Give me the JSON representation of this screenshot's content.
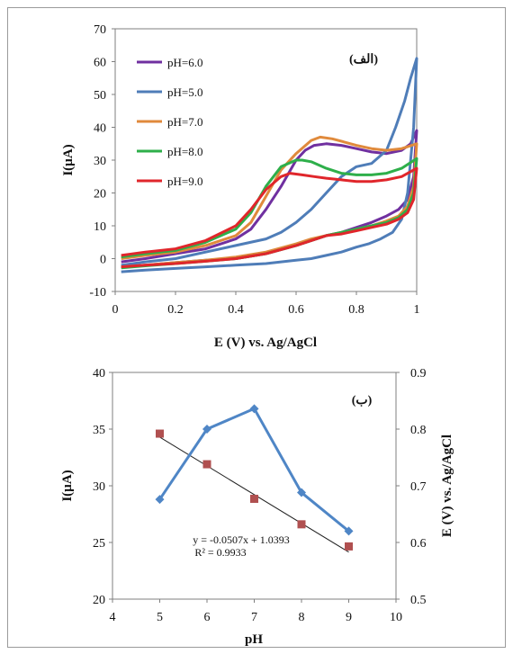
{
  "chart_data": [
    {
      "type": "line",
      "panel_label": "(الف)",
      "xlabel": "E (V) vs. Ag/AgCl",
      "ylabel": "I(µA)",
      "xlim": [
        0,
        1
      ],
      "ylim": [
        -10,
        70
      ],
      "xticks": [
        "0",
        "0.2",
        "0.4",
        "0.6",
        "0.8",
        "1"
      ],
      "yticks": [
        "-10",
        "0",
        "10",
        "20",
        "30",
        "40",
        "50",
        "60",
        "70"
      ],
      "legend_position": "top-left",
      "grid": false,
      "series": [
        {
          "name": "pH=6.0",
          "color": "#7030A0",
          "x": [
            0.02,
            0.1,
            0.2,
            0.3,
            0.4,
            0.45,
            0.5,
            0.55,
            0.6,
            0.63,
            0.66,
            0.7,
            0.75,
            0.8,
            0.85,
            0.9,
            0.95,
            0.98,
            1.0,
            0.99,
            0.97,
            0.94,
            0.9,
            0.85,
            0.8,
            0.75,
            0.7,
            0.65,
            0.6,
            0.5,
            0.4,
            0.3,
            0.2,
            0.1,
            0.02
          ],
          "y": [
            -1,
            0,
            1.5,
            3,
            6,
            9,
            15,
            22,
            30,
            33,
            34.5,
            35,
            34.5,
            33.5,
            32.5,
            32,
            33,
            35,
            39,
            25,
            18,
            15,
            13,
            11,
            9.5,
            8,
            7,
            5.5,
            4,
            1.5,
            0,
            -0.5,
            -1.2,
            -2,
            -2.5
          ]
        },
        {
          "name": "pH=5.0",
          "color": "#4F7DB8",
          "x": [
            0.02,
            0.1,
            0.2,
            0.3,
            0.4,
            0.5,
            0.55,
            0.6,
            0.65,
            0.7,
            0.75,
            0.8,
            0.85,
            0.9,
            0.93,
            0.96,
            0.98,
            1.0,
            0.99,
            0.97,
            0.95,
            0.92,
            0.88,
            0.84,
            0.8,
            0.75,
            0.7,
            0.65,
            0.6,
            0.5,
            0.4,
            0.3,
            0.2,
            0.1,
            0.02
          ],
          "y": [
            -2,
            -1,
            0,
            2,
            4,
            6,
            8,
            11,
            15,
            20,
            25,
            28,
            29,
            33,
            40,
            48,
            55,
            61,
            40,
            20,
            12,
            8,
            6,
            4.5,
            3.5,
            2,
            1,
            0,
            -0.5,
            -1.5,
            -2,
            -2.5,
            -3,
            -3.5,
            -4
          ]
        },
        {
          "name": "pH=7.0",
          "color": "#E08A3C",
          "x": [
            0.02,
            0.1,
            0.2,
            0.3,
            0.4,
            0.45,
            0.5,
            0.55,
            0.6,
            0.65,
            0.68,
            0.72,
            0.76,
            0.8,
            0.85,
            0.9,
            0.95,
            1.0,
            0.99,
            0.97,
            0.94,
            0.9,
            0.85,
            0.8,
            0.75,
            0.7,
            0.65,
            0.6,
            0.5,
            0.4,
            0.3,
            0.2,
            0.1,
            0.02
          ],
          "y": [
            0,
            1,
            2,
            4,
            7,
            11,
            19,
            27,
            32,
            36,
            37,
            36.5,
            35.5,
            34.5,
            33.5,
            33,
            33.5,
            35,
            22,
            16,
            13,
            11.5,
            10,
            9,
            8,
            7,
            6,
            4.5,
            2,
            0.5,
            -0.5,
            -1.2,
            -2,
            -2.5
          ]
        },
        {
          "name": "pH=8.0",
          "color": "#2EAF4A",
          "x": [
            0.02,
            0.1,
            0.2,
            0.3,
            0.4,
            0.45,
            0.5,
            0.55,
            0.6,
            0.62,
            0.65,
            0.7,
            0.75,
            0.8,
            0.85,
            0.9,
            0.95,
            1.0,
            0.99,
            0.97,
            0.94,
            0.9,
            0.85,
            0.8,
            0.75,
            0.7,
            0.65,
            0.6,
            0.5,
            0.4,
            0.3,
            0.2,
            0.1,
            0.02
          ],
          "y": [
            0.5,
            1.5,
            2.5,
            5,
            9,
            14,
            22,
            28,
            30,
            30,
            29.5,
            27.5,
            26,
            25.5,
            25.5,
            26,
            27.5,
            30.5,
            20,
            15,
            12.5,
            11,
            10,
            9,
            8,
            7,
            5.5,
            4,
            1.5,
            0,
            -0.8,
            -1.5,
            -2.2,
            -2.8
          ]
        },
        {
          "name": "pH=9.0",
          "color": "#E0262B",
          "x": [
            0.02,
            0.1,
            0.2,
            0.3,
            0.4,
            0.45,
            0.5,
            0.55,
            0.58,
            0.62,
            0.66,
            0.7,
            0.75,
            0.8,
            0.85,
            0.9,
            0.95,
            1.0,
            0.99,
            0.97,
            0.94,
            0.9,
            0.85,
            0.8,
            0.75,
            0.7,
            0.65,
            0.6,
            0.5,
            0.4,
            0.3,
            0.2,
            0.1,
            0.02
          ],
          "y": [
            1,
            2,
            3,
            5.5,
            10,
            15,
            21,
            25,
            26,
            25.5,
            25,
            24.5,
            24,
            23.5,
            23.5,
            24,
            25,
            27.5,
            18,
            14,
            12,
            10.5,
            9.5,
            8.5,
            7.5,
            7,
            5.5,
            4,
            1.5,
            0,
            -0.8,
            -1.5,
            -2,
            -2.5
          ]
        }
      ]
    },
    {
      "type": "line",
      "panel_label": "(ب)",
      "xlabel": "pH",
      "ylabel": "I(µA)",
      "y2label": "E (V) vs. Ag/AgCl",
      "xlim": [
        4,
        10
      ],
      "ylim": [
        20,
        40
      ],
      "y2lim": [
        0.5,
        0.9
      ],
      "xticks": [
        "4",
        "5",
        "6",
        "7",
        "8",
        "9",
        "10"
      ],
      "yticks": [
        "20",
        "25",
        "30",
        "35",
        "40"
      ],
      "y2ticks": [
        "0.5",
        "0.6",
        "0.7",
        "0.8",
        "0.9"
      ],
      "grid": false,
      "series": [
        {
          "axis": "left",
          "color": "#4F86C6",
          "marker": "diamond",
          "x": [
            5,
            6,
            7,
            8,
            9
          ],
          "y": [
            28.8,
            35,
            36.8,
            29.4,
            26
          ]
        },
        {
          "axis": "right",
          "color": "#B05050",
          "marker": "square",
          "x": [
            5,
            6,
            7,
            8,
            9
          ],
          "y": [
            0.792,
            0.738,
            0.677,
            0.632,
            0.593
          ]
        }
      ],
      "trendline": {
        "x": [
          5,
          9
        ],
        "y": [
          0.7858,
          0.583
        ],
        "equation": "y = -0.0507x + 1.0393",
        "r2": "R² = 0.9933"
      }
    }
  ]
}
